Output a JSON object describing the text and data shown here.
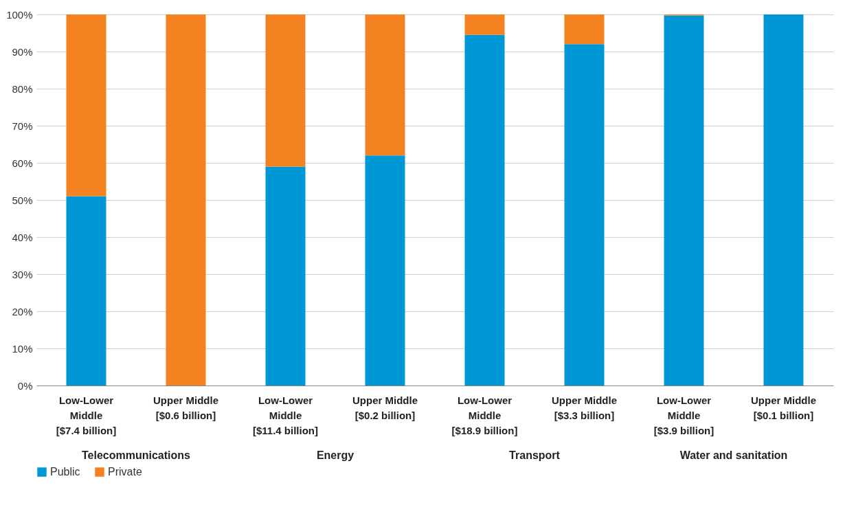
{
  "chart_data": {
    "type": "bar",
    "stacked": true,
    "categories": [
      "Low-Lower Middle [$7.4 billion]",
      "Upper Middle [$0.6 billion]",
      "Low-Lower Middle [$11.4 billion]",
      "Upper Middle [$0.2 billion]",
      "Low-Lower Middle [$18.9 billion]",
      "Upper Middle [$3.3 billion]",
      "Low-Lower Middle [$3.9 billion]",
      "Upper Middle [$0.1 billion]"
    ],
    "series": [
      {
        "name": "Public",
        "color": "#0097d6",
        "values": [
          51,
          0,
          59,
          62,
          94.5,
          92,
          99.7,
          100
        ]
      },
      {
        "name": "Private",
        "color": "#f58220",
        "values": [
          49,
          100,
          41,
          38,
          5.5,
          8,
          0.3,
          0
        ]
      }
    ],
    "ylim": [
      0,
      100
    ],
    "yticks": [
      {
        "value": 0,
        "label": "0%"
      },
      {
        "value": 10,
        "label": "10%"
      },
      {
        "value": 20,
        "label": "20%"
      },
      {
        "value": 30,
        "label": "30%"
      },
      {
        "value": 40,
        "label": "40%"
      },
      {
        "value": 50,
        "label": "50%"
      },
      {
        "value": 60,
        "label": "60%"
      },
      {
        "value": 70,
        "label": "70%"
      },
      {
        "value": 80,
        "label": "80%"
      },
      {
        "value": 90,
        "label": "90%"
      },
      {
        "value": 100,
        "label": "100%"
      }
    ],
    "grid": "y",
    "legend": "bottom",
    "annotations": [
      "Telecommunications",
      "Energy",
      "Transport",
      "Water and sanitation"
    ]
  }
}
